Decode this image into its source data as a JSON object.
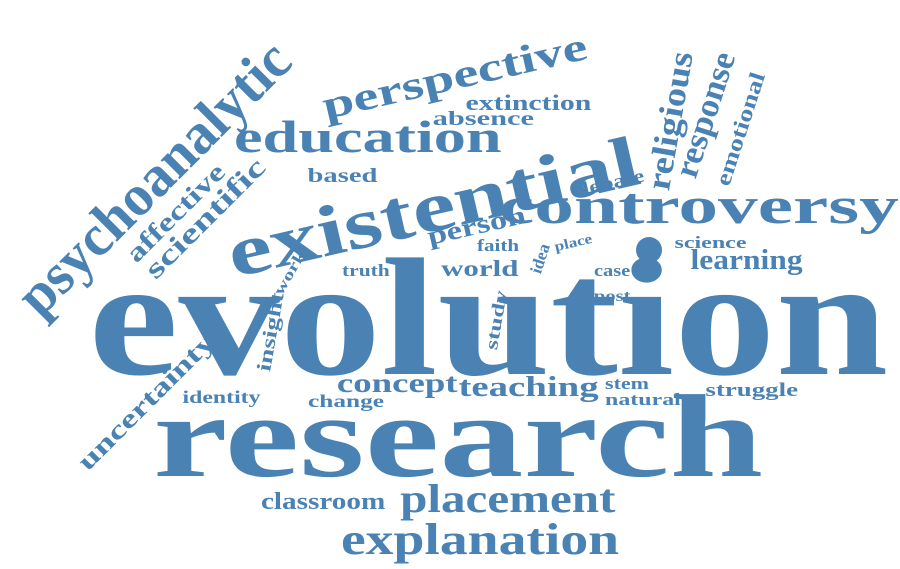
{
  "colors": {
    "word": "#4a82b3",
    "background": "#ffffff"
  },
  "words": [
    {
      "id": "evolution",
      "text": "evolution"
    },
    {
      "id": "research",
      "text": "research"
    },
    {
      "id": "existential",
      "text": "existential"
    },
    {
      "id": "psychoanalytic",
      "text": "psychoanalytic"
    },
    {
      "id": "controversy",
      "text": "controversy"
    },
    {
      "id": "education",
      "text": "education"
    },
    {
      "id": "perspective",
      "text": "perspective"
    },
    {
      "id": "explanation",
      "text": "explanation"
    },
    {
      "id": "placement",
      "text": "placement"
    },
    {
      "id": "teaching",
      "text": "teaching"
    },
    {
      "id": "concept",
      "text": "concept"
    },
    {
      "id": "religious",
      "text": "religious"
    },
    {
      "id": "response",
      "text": "response"
    },
    {
      "id": "emotional",
      "text": "emotional"
    },
    {
      "id": "scientific",
      "text": "scientific"
    },
    {
      "id": "affective",
      "text": "affective"
    },
    {
      "id": "uncertainty",
      "text": "uncertainty"
    },
    {
      "id": "learning",
      "text": "learning"
    },
    {
      "id": "person",
      "text": "person"
    },
    {
      "id": "world",
      "text": "world"
    },
    {
      "id": "classroom",
      "text": "classroom"
    },
    {
      "id": "extinction",
      "text": "extinction"
    },
    {
      "id": "absence",
      "text": "absence"
    },
    {
      "id": "based",
      "text": "based"
    },
    {
      "id": "debate",
      "text": "debate"
    },
    {
      "id": "faith",
      "text": "faith"
    },
    {
      "id": "idea",
      "text": "idea"
    },
    {
      "id": "place",
      "text": "place"
    },
    {
      "id": "science",
      "text": "science"
    },
    {
      "id": "truth",
      "text": "truth"
    },
    {
      "id": "case",
      "text": "case"
    },
    {
      "id": "work",
      "text": "work"
    },
    {
      "id": "insight",
      "text": "insight"
    },
    {
      "id": "study",
      "text": "study"
    },
    {
      "id": "post",
      "text": "post"
    },
    {
      "id": "stem",
      "text": "stem"
    },
    {
      "id": "natural",
      "text": "natural"
    },
    {
      "id": "struggle",
      "text": "struggle"
    },
    {
      "id": "identity",
      "text": "identity"
    },
    {
      "id": "change",
      "text": "change"
    }
  ]
}
